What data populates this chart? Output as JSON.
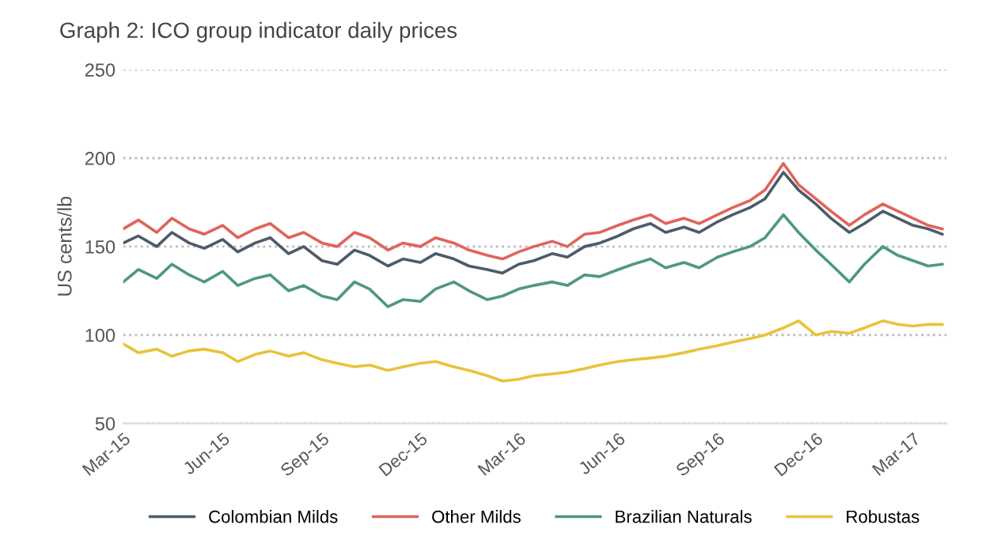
{
  "chart_data": {
    "type": "line",
    "title": "Graph 2: ICO group indicator daily prices",
    "ylabel": "US cents/lb",
    "x": [
      "2015-03-01",
      "2015-03-15",
      "2015-04-01",
      "2015-04-15",
      "2015-05-01",
      "2015-05-15",
      "2015-06-01",
      "2015-06-15",
      "2015-07-01",
      "2015-07-15",
      "2015-08-01",
      "2015-08-15",
      "2015-09-01",
      "2015-09-15",
      "2015-10-01",
      "2015-10-15",
      "2015-11-01",
      "2015-11-15",
      "2015-12-01",
      "2015-12-15",
      "2016-01-01",
      "2016-01-15",
      "2016-02-01",
      "2016-02-15",
      "2016-03-01",
      "2016-03-15",
      "2016-04-01",
      "2016-04-15",
      "2016-05-01",
      "2016-05-15",
      "2016-06-01",
      "2016-06-15",
      "2016-07-01",
      "2016-07-15",
      "2016-08-01",
      "2016-08-15",
      "2016-09-01",
      "2016-09-15",
      "2016-10-01",
      "2016-10-15",
      "2016-11-01",
      "2016-11-15",
      "2016-12-01",
      "2016-12-15",
      "2017-01-01",
      "2017-01-15",
      "2017-02-01",
      "2017-02-15",
      "2017-03-01",
      "2017-03-15",
      "2017-03-28"
    ],
    "series": [
      {
        "name": "Colombian Milds",
        "color": "#4d5b6b",
        "values": [
          152,
          156,
          150,
          158,
          152,
          149,
          154,
          147,
          152,
          155,
          146,
          150,
          142,
          140,
          148,
          145,
          139,
          143,
          141,
          146,
          143,
          139,
          137,
          135,
          140,
          142,
          146,
          144,
          150,
          152,
          156,
          160,
          163,
          158,
          161,
          158,
          164,
          168,
          172,
          177,
          192,
          182,
          174,
          166,
          158,
          163,
          170,
          166,
          162,
          160,
          157
        ]
      },
      {
        "name": "Other Milds",
        "color": "#e0645a",
        "values": [
          160,
          165,
          158,
          166,
          160,
          157,
          162,
          155,
          160,
          163,
          155,
          158,
          152,
          150,
          158,
          155,
          148,
          152,
          150,
          155,
          152,
          148,
          145,
          143,
          147,
          150,
          153,
          150,
          157,
          158,
          162,
          165,
          168,
          163,
          166,
          163,
          168,
          172,
          176,
          182,
          197,
          185,
          177,
          170,
          162,
          168,
          174,
          170,
          166,
          162,
          160
        ]
      },
      {
        "name": "Brazilian Naturals",
        "color": "#4e9a78",
        "values": [
          130,
          137,
          132,
          140,
          134,
          130,
          136,
          128,
          132,
          134,
          125,
          128,
          122,
          120,
          130,
          126,
          116,
          120,
          119,
          126,
          130,
          125,
          120,
          122,
          126,
          128,
          130,
          128,
          134,
          133,
          137,
          140,
          143,
          138,
          141,
          138,
          144,
          147,
          150,
          155,
          168,
          158,
          148,
          140,
          130,
          140,
          150,
          145,
          142,
          139,
          140
        ]
      },
      {
        "name": "Robustas",
        "color": "#e8c33a",
        "values": [
          95,
          90,
          92,
          88,
          91,
          92,
          90,
          85,
          89,
          91,
          88,
          90,
          86,
          84,
          82,
          83,
          80,
          82,
          84,
          85,
          82,
          80,
          77,
          74,
          75,
          77,
          78,
          79,
          81,
          83,
          85,
          86,
          87,
          88,
          90,
          92,
          94,
          96,
          98,
          100,
          104,
          108,
          100,
          102,
          101,
          104,
          108,
          106,
          105,
          106,
          106
        ]
      }
    ],
    "xlim": [
      "2015-03-01",
      "2017-04-01"
    ],
    "xticks": [
      {
        "value": "2015-03-01",
        "label": "Mar-15"
      },
      {
        "value": "2015-06-01",
        "label": "Jun-15"
      },
      {
        "value": "2015-09-01",
        "label": "Sep-15"
      },
      {
        "value": "2015-12-01",
        "label": "Dec-15"
      },
      {
        "value": "2016-03-01",
        "label": "Mar-16"
      },
      {
        "value": "2016-06-01",
        "label": "Jun-16"
      },
      {
        "value": "2016-09-01",
        "label": "Sep-16"
      },
      {
        "value": "2016-12-01",
        "label": "Dec-16"
      },
      {
        "value": "2017-03-01",
        "label": "Mar-17"
      }
    ],
    "ylim": [
      50,
      250
    ],
    "yticks": [
      50,
      100,
      150,
      200,
      250
    ],
    "grid": "y",
    "legend": "bottom",
    "marker": "none",
    "line_style": "solid"
  }
}
